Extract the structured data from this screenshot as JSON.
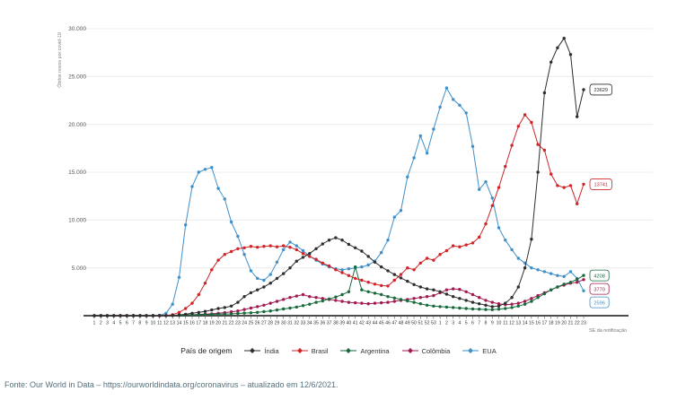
{
  "footer": {
    "text": "Fonte: Our World in Data – https://ourworldindata.org/coronavirus – atualizado em 12/6/2021."
  },
  "chart_data": {
    "type": "line",
    "title": "",
    "ylabel": "Óbitos novos por covid-19",
    "xlabel": "SE da notificação",
    "legend_title": "País de origem",
    "legend_position": "bottom",
    "grid": "horizontal",
    "ylim": [
      0,
      30000
    ],
    "y_tick_values": [
      5000,
      10000,
      15000,
      20000,
      25000,
      30000
    ],
    "y_tick_labels": [
      "5.000",
      "10.000",
      "15.000",
      "20.000",
      "25.000",
      "30.000"
    ],
    "x": [
      "1",
      "2",
      "3",
      "4",
      "5",
      "6",
      "7",
      "8",
      "9",
      "10",
      "11",
      "12",
      "13",
      "14",
      "15",
      "16",
      "17",
      "18",
      "19",
      "20",
      "21",
      "22",
      "23",
      "24",
      "25",
      "26",
      "27",
      "28",
      "29",
      "30",
      "31",
      "32",
      "33",
      "34",
      "35",
      "36",
      "37",
      "38",
      "39",
      "40",
      "41",
      "42",
      "43",
      "44",
      "45",
      "46",
      "47",
      "48",
      "49",
      "50",
      "51",
      "52",
      "53",
      "1",
      "2",
      "3",
      "4",
      "5",
      "6",
      "7",
      "8",
      "9",
      "10",
      "11",
      "12",
      "13",
      "14",
      "15",
      "16",
      "17",
      "18",
      "19",
      "20",
      "21",
      "22",
      "23"
    ],
    "x_note": "weeks 1-53 of 2020 followed by weeks 1-23 of 2021",
    "series": [
      {
        "name": "Índia",
        "color": "#2e2e2e",
        "end_label": "23629",
        "values": [
          0,
          0,
          0,
          0,
          0,
          0,
          0,
          0,
          0,
          1,
          5,
          10,
          30,
          80,
          150,
          250,
          350,
          450,
          600,
          750,
          850,
          1000,
          1400,
          2000,
          2400,
          2700,
          3000,
          3400,
          3900,
          4400,
          5000,
          5700,
          6100,
          6500,
          7000,
          7500,
          7900,
          8150,
          7900,
          7450,
          7100,
          6750,
          6200,
          5600,
          5100,
          4700,
          4300,
          3950,
          3600,
          3250,
          3000,
          2800,
          2700,
          2500,
          2250,
          2000,
          1800,
          1600,
          1400,
          1250,
          1100,
          950,
          1000,
          1300,
          1900,
          3000,
          5000,
          8000,
          15000,
          23300,
          26500,
          28000,
          29000,
          27300,
          20800,
          23629
        ]
      },
      {
        "name": "Brasil",
        "color": "#cf2428",
        "end_label": "13741",
        "values": [
          0,
          0,
          0,
          0,
          0,
          0,
          0,
          0,
          0,
          0,
          0,
          20,
          100,
          350,
          750,
          1300,
          2200,
          3400,
          4800,
          5800,
          6400,
          6700,
          7000,
          7100,
          7250,
          7150,
          7250,
          7300,
          7200,
          7300,
          7150,
          6900,
          6500,
          6200,
          5900,
          5500,
          5200,
          4800,
          4500,
          4200,
          3900,
          3700,
          3500,
          3300,
          3150,
          3100,
          3700,
          4300,
          5000,
          4800,
          5500,
          6000,
          5800,
          6400,
          6800,
          7300,
          7200,
          7400,
          7600,
          8200,
          9600,
          11500,
          13400,
          15600,
          17800,
          19800,
          21000,
          20200,
          17900,
          17300,
          14800,
          13600,
          13400,
          13600,
          11700,
          13741
        ]
      },
      {
        "name": "Argentina",
        "color": "#176a3c",
        "end_label": "4208",
        "values": [
          0,
          0,
          0,
          0,
          0,
          0,
          0,
          0,
          0,
          0,
          0,
          5,
          15,
          40,
          60,
          80,
          100,
          120,
          140,
          160,
          180,
          200,
          230,
          270,
          300,
          350,
          420,
          500,
          600,
          700,
          800,
          900,
          1050,
          1200,
          1400,
          1550,
          1750,
          1950,
          2200,
          2500,
          5100,
          2700,
          2500,
          2350,
          2200,
          2000,
          1850,
          1700,
          1550,
          1400,
          1250,
          1100,
          1000,
          950,
          900,
          850,
          800,
          750,
          700,
          680,
          650,
          630,
          680,
          750,
          850,
          1000,
          1200,
          1500,
          1900,
          2300,
          2700,
          3000,
          3300,
          3500,
          3800,
          4208
        ]
      },
      {
        "name": "Colômbia",
        "color": "#a01a4f",
        "end_label": "3770",
        "values": [
          0,
          0,
          0,
          0,
          0,
          0,
          0,
          0,
          0,
          0,
          0,
          5,
          15,
          40,
          70,
          100,
          130,
          160,
          200,
          250,
          320,
          400,
          500,
          650,
          800,
          950,
          1100,
          1300,
          1500,
          1700,
          1900,
          2050,
          2200,
          2000,
          1900,
          1800,
          1700,
          1600,
          1500,
          1400,
          1350,
          1300,
          1250,
          1300,
          1350,
          1400,
          1500,
          1600,
          1700,
          1800,
          1900,
          2000,
          2100,
          2400,
          2700,
          2800,
          2750,
          2500,
          2200,
          1900,
          1600,
          1400,
          1250,
          1150,
          1200,
          1300,
          1500,
          1800,
          2100,
          2400,
          2700,
          3000,
          3200,
          3400,
          3500,
          3770
        ]
      },
      {
        "name": "EUA",
        "color": "#3f8fc9",
        "end_label": "2596",
        "values": [
          0,
          0,
          0,
          0,
          0,
          0,
          0,
          0,
          0,
          5,
          40,
          250,
          1200,
          4000,
          9500,
          13500,
          15000,
          15300,
          15500,
          13300,
          12200,
          9800,
          8300,
          6400,
          4700,
          3900,
          3700,
          4300,
          5600,
          6900,
          7700,
          7300,
          6800,
          6200,
          5800,
          5400,
          5100,
          4900,
          4800,
          4900,
          5000,
          5100,
          5300,
          5700,
          6600,
          7900,
          10300,
          11000,
          14500,
          16500,
          18800,
          17000,
          19500,
          21800,
          23800,
          22600,
          22000,
          21200,
          17700,
          13200,
          14000,
          12300,
          9200,
          7900,
          6900,
          6000,
          5500,
          5000,
          4800,
          4600,
          4400,
          4200,
          4100,
          4600,
          3900,
          2596
        ]
      }
    ]
  }
}
